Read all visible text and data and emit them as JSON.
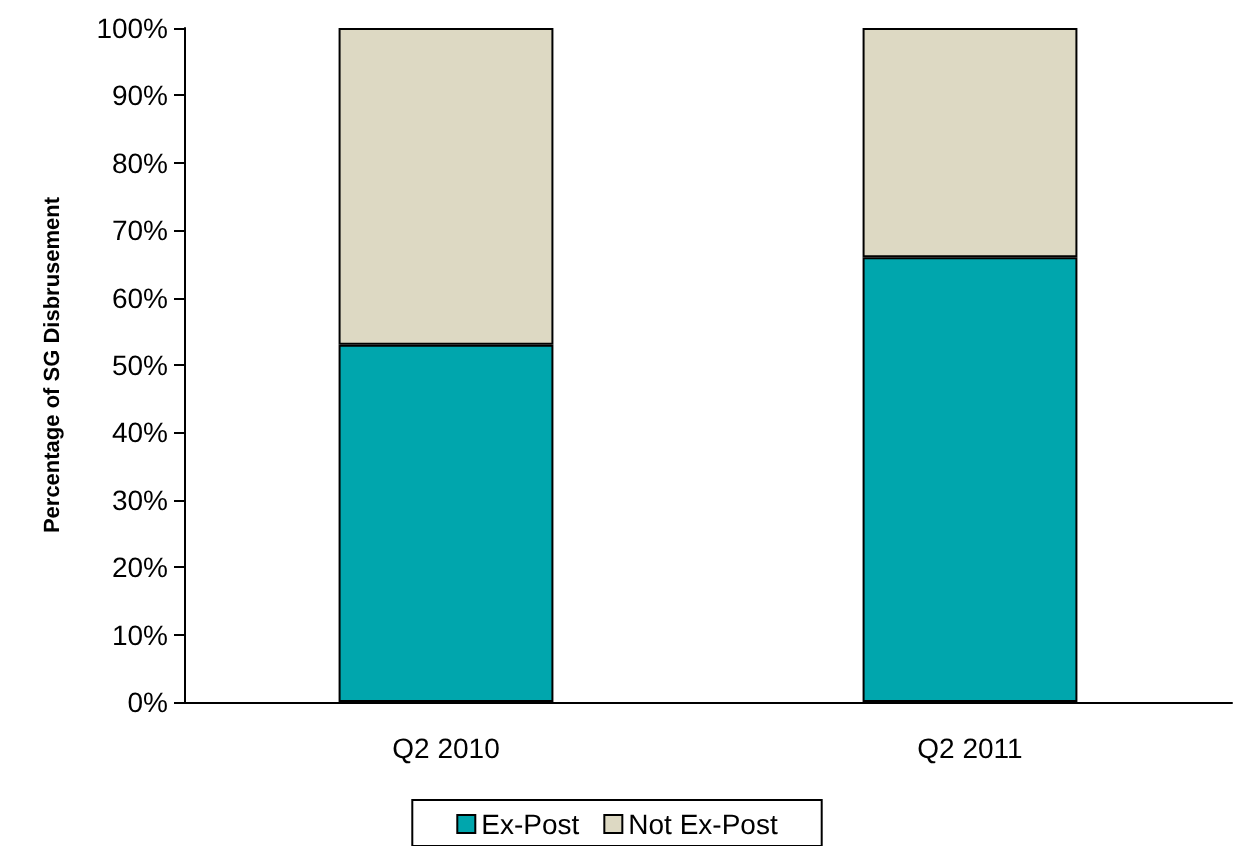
{
  "chart_data": {
    "type": "bar",
    "stacked": true,
    "ylabel": "Percentage of SG Disbrusement",
    "categories": [
      "Q2 2010",
      "Q2 2011"
    ],
    "series": [
      {
        "name": "Ex-Post",
        "color": "#00a6ad",
        "values": [
          53,
          66
        ]
      },
      {
        "name": "Not Ex-Post",
        "color": "#ddd9c3",
        "values": [
          47,
          34
        ]
      }
    ],
    "ylim": [
      0,
      100
    ],
    "yticks": [
      {
        "value": 0,
        "label": "0%"
      },
      {
        "value": 10,
        "label": "10%"
      },
      {
        "value": 20,
        "label": "20%"
      },
      {
        "value": 30,
        "label": "30%"
      },
      {
        "value": 40,
        "label": "40%"
      },
      {
        "value": 50,
        "label": "50%"
      },
      {
        "value": 60,
        "label": "60%"
      },
      {
        "value": 70,
        "label": "70%"
      },
      {
        "value": 80,
        "label": "80%"
      },
      {
        "value": 90,
        "label": "90%"
      },
      {
        "value": 100,
        "label": "100%"
      }
    ],
    "grid": false,
    "legend": "bottom"
  }
}
